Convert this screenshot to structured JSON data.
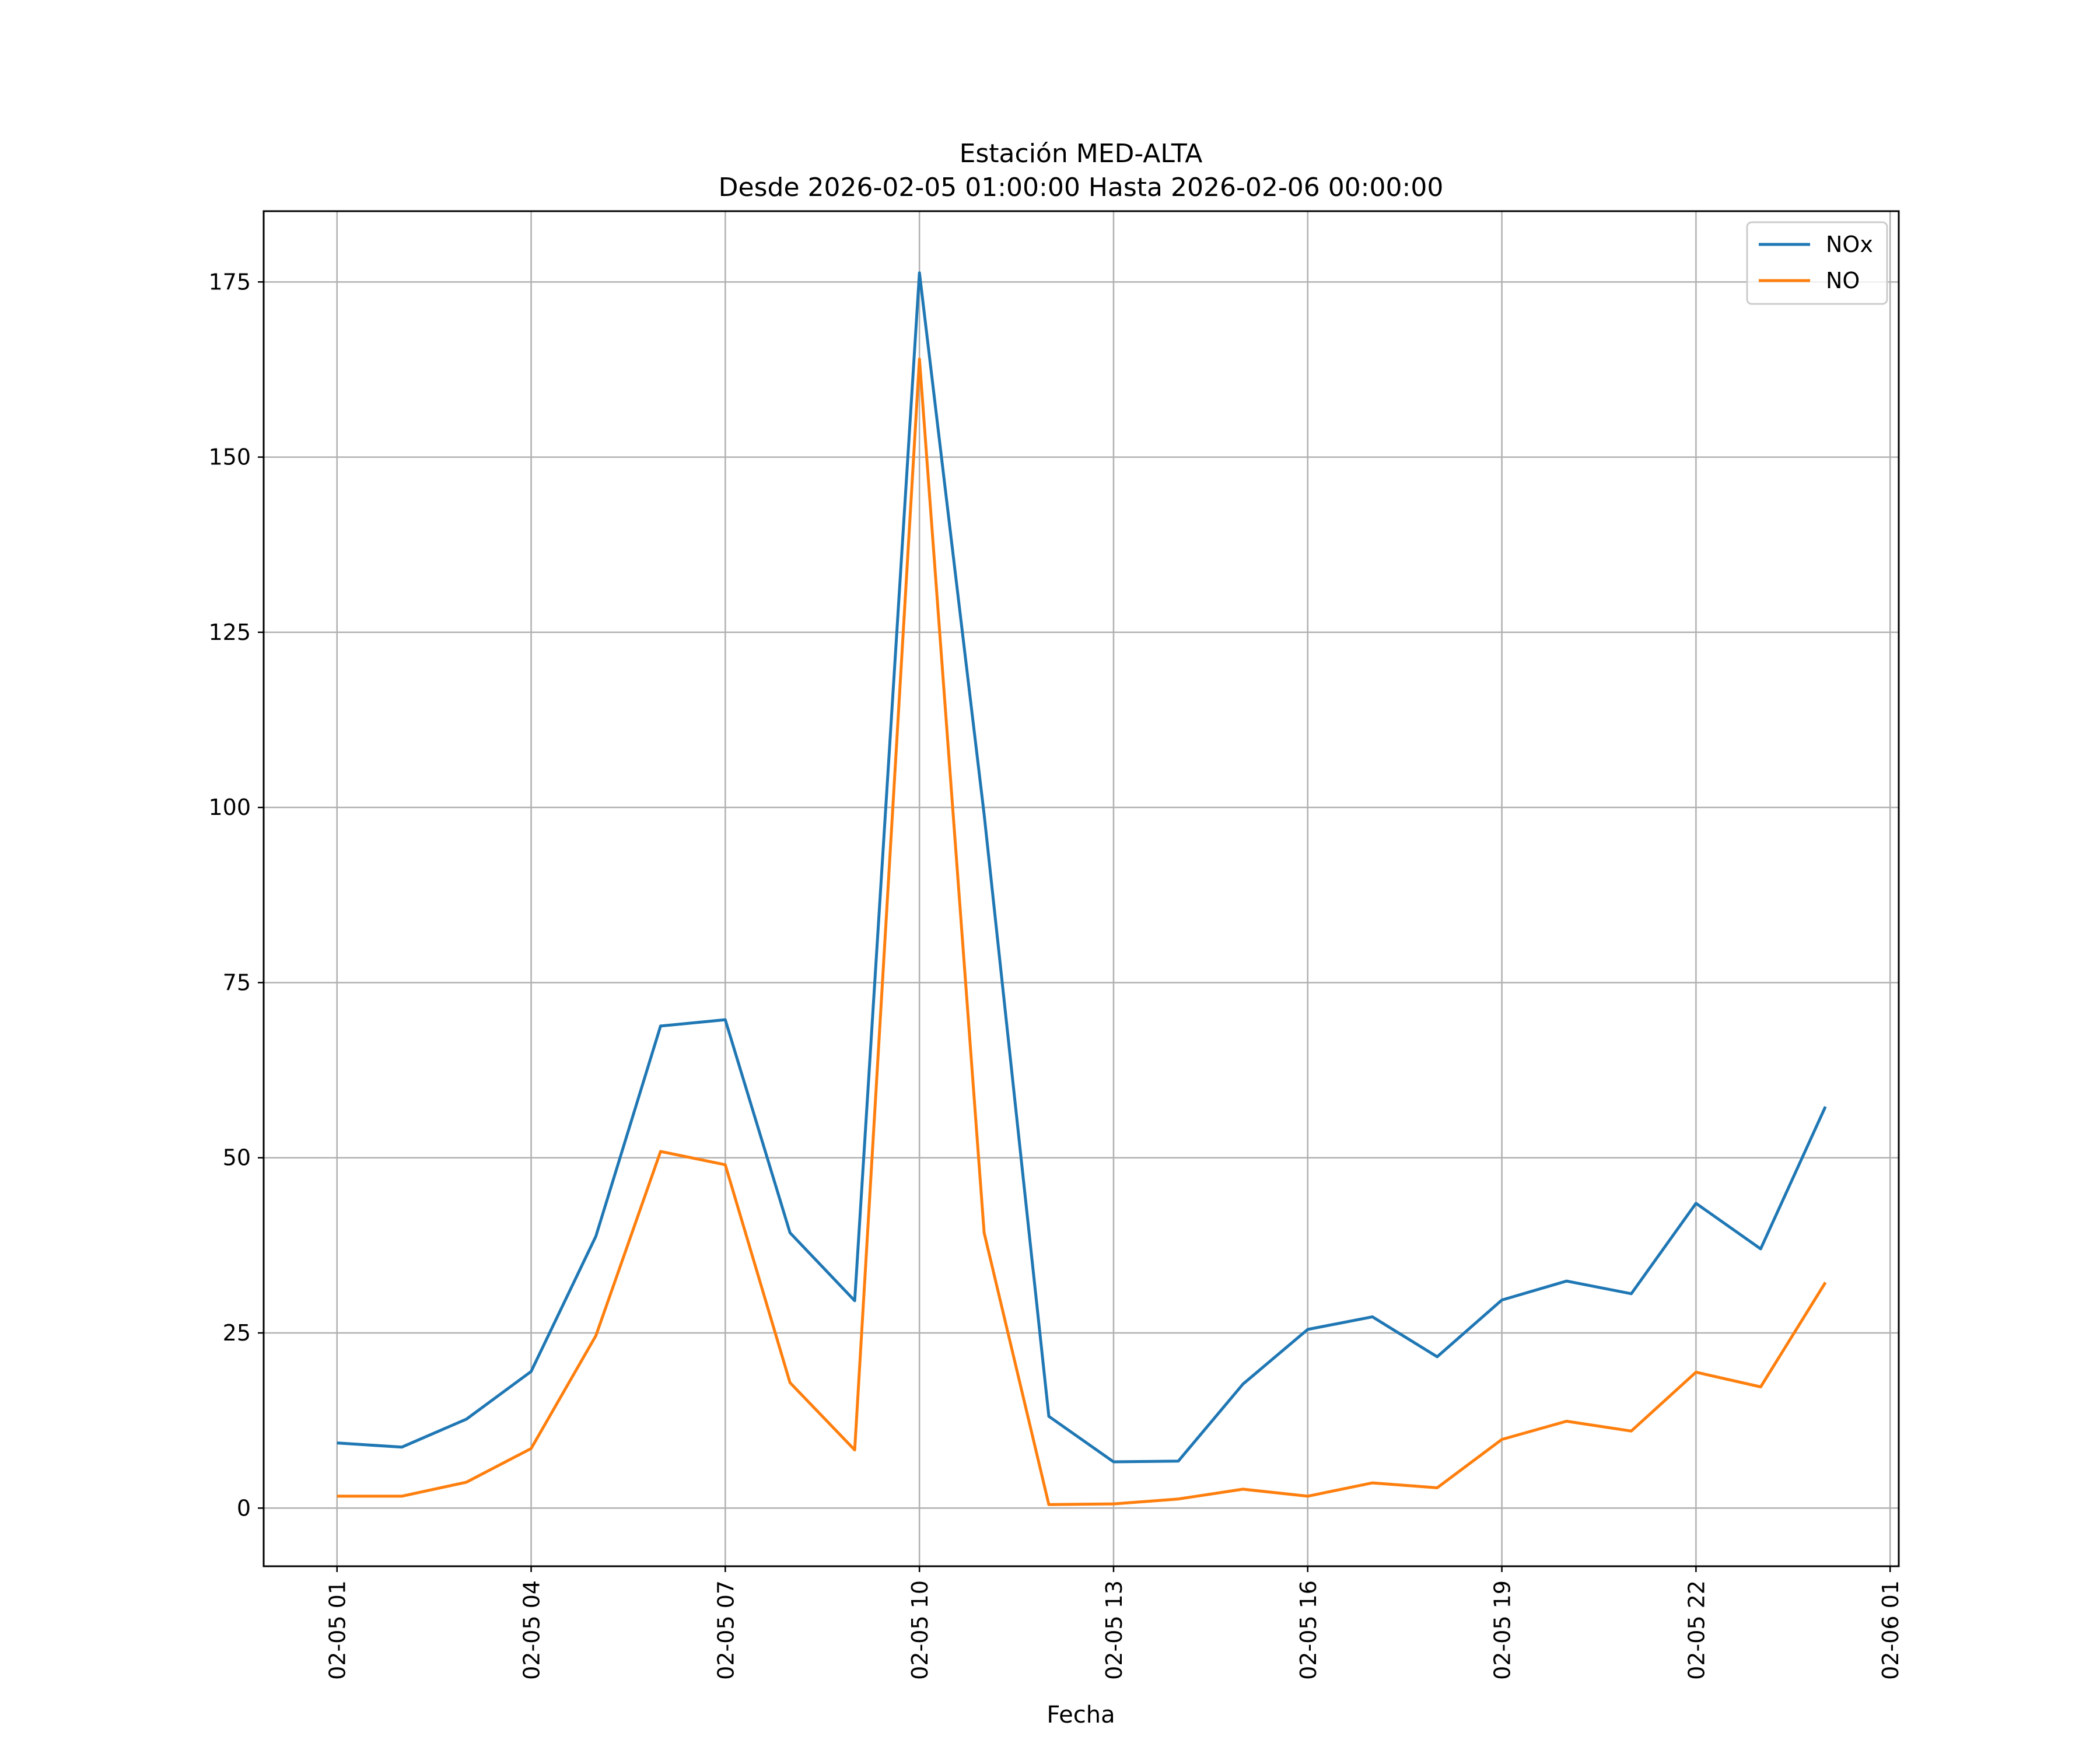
{
  "chart_data": {
    "type": "line",
    "title": "Estación MED-ALTA",
    "subtitle": "Desde 2026-02-05 01:00:00 Hasta 2026-02-06 00:00:00",
    "xlabel": "Fecha",
    "ylabel": "",
    "x": [
      "2026-02-05 01:00",
      "2026-02-05 02:00",
      "2026-02-05 03:00",
      "2026-02-05 04:00",
      "2026-02-05 05:00",
      "2026-02-05 06:00",
      "2026-02-05 07:00",
      "2026-02-05 08:00",
      "2026-02-05 09:00",
      "2026-02-05 10:00",
      "2026-02-05 11:00",
      "2026-02-05 12:00",
      "2026-02-05 13:00",
      "2026-02-05 14:00",
      "2026-02-05 15:00",
      "2026-02-05 16:00",
      "2026-02-05 17:00",
      "2026-02-05 18:00",
      "2026-02-05 19:00",
      "2026-02-05 20:00",
      "2026-02-05 21:00",
      "2026-02-05 22:00",
      "2026-02-05 23:00",
      "2026-02-06 00:00"
    ],
    "series": [
      {
        "name": "NOx",
        "color": "#1f77b4",
        "values": [
          9.3,
          8.7,
          12.7,
          19.5,
          38.8,
          68.8,
          69.7,
          39.3,
          29.6,
          176.3,
          99.0,
          13.1,
          6.6,
          6.7,
          17.7,
          25.5,
          27.3,
          21.6,
          29.7,
          32.4,
          30.6,
          43.5,
          37.0,
          57.3
        ]
      },
      {
        "name": "NO",
        "color": "#ff7f0e",
        "values": [
          1.7,
          1.7,
          3.7,
          8.5,
          24.6,
          50.9,
          49.0,
          17.9,
          8.3,
          164.0,
          39.3,
          0.5,
          0.6,
          1.3,
          2.7,
          1.7,
          3.6,
          2.9,
          9.8,
          12.4,
          11.0,
          19.4,
          17.3,
          32.2
        ]
      }
    ],
    "x_ticks": [
      "02-05 01",
      "02-05 04",
      "02-05 07",
      "02-05 10",
      "02-05 13",
      "02-05 16",
      "02-05 19",
      "02-05 22",
      "02-06 01"
    ],
    "x_range": [
      "2026-02-04 23:52",
      "2026-02-06 01:08"
    ],
    "y_ticks": [
      0,
      25,
      50,
      75,
      100,
      125,
      150,
      175
    ],
    "ylim": [
      -8.3,
      185.1
    ],
    "grid": true,
    "legend_position": "upper right"
  }
}
